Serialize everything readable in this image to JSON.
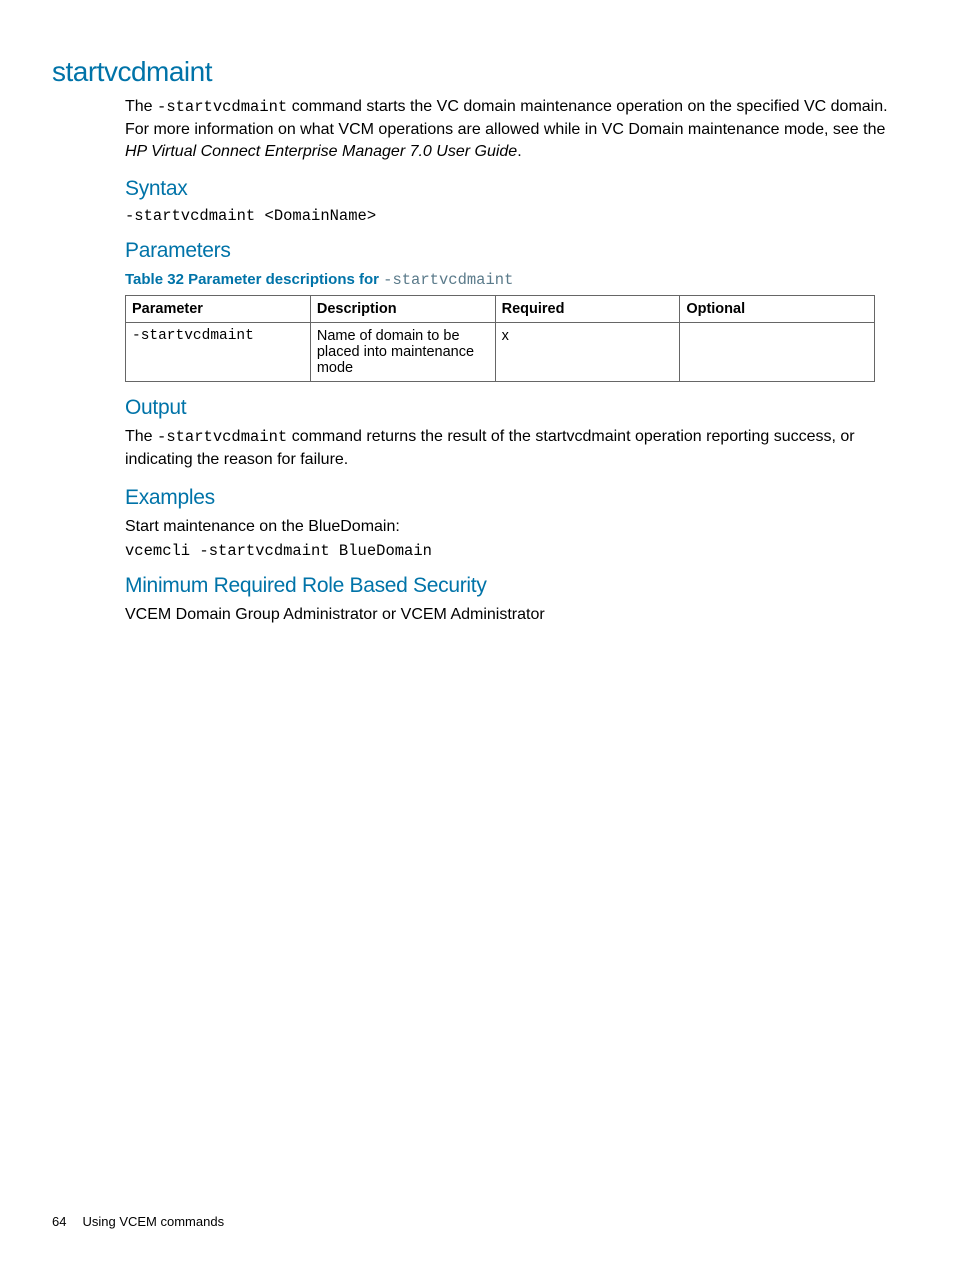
{
  "page": {
    "title": "startvcdmaint",
    "intro_pre": "The ",
    "intro_code": "-startvcdmaint",
    "intro_post": " command starts the VC domain maintenance operation on the specified VC domain. For more information on what VCM operations are allowed while in VC Domain maintenance mode, see the ",
    "intro_italic": "HP Virtual Connect Enterprise Manager 7.0 User Guide",
    "intro_end": "."
  },
  "syntax": {
    "heading": "Syntax",
    "line": "-startvcdmaint <DomainName>"
  },
  "parameters": {
    "heading": "Parameters",
    "caption_pre": "Table 32 Parameter descriptions for ",
    "caption_code": "-startvcdmaint",
    "columns": [
      "Parameter",
      "Description",
      "Required",
      "Optional"
    ],
    "rows": [
      {
        "param": "-startvcdmaint",
        "desc": "Name of domain to be placed into maintenance mode",
        "required": "x",
        "optional": ""
      }
    ]
  },
  "output": {
    "heading": "Output",
    "text_pre": "The ",
    "text_code": "-startvcdmaint",
    "text_post": " command returns the result of the startvcdmaint operation reporting success, or indicating the reason for failure."
  },
  "examples": {
    "heading": "Examples",
    "intro": "Start maintenance on the BlueDomain:",
    "code": "vcemcli -startvcdmaint BlueDomain"
  },
  "security": {
    "heading": "Minimum Required Role Based Security",
    "text": "VCEM Domain Group Administrator or VCEM Administrator"
  },
  "footer": {
    "pagenum": "64",
    "section": "Using VCEM commands"
  }
}
